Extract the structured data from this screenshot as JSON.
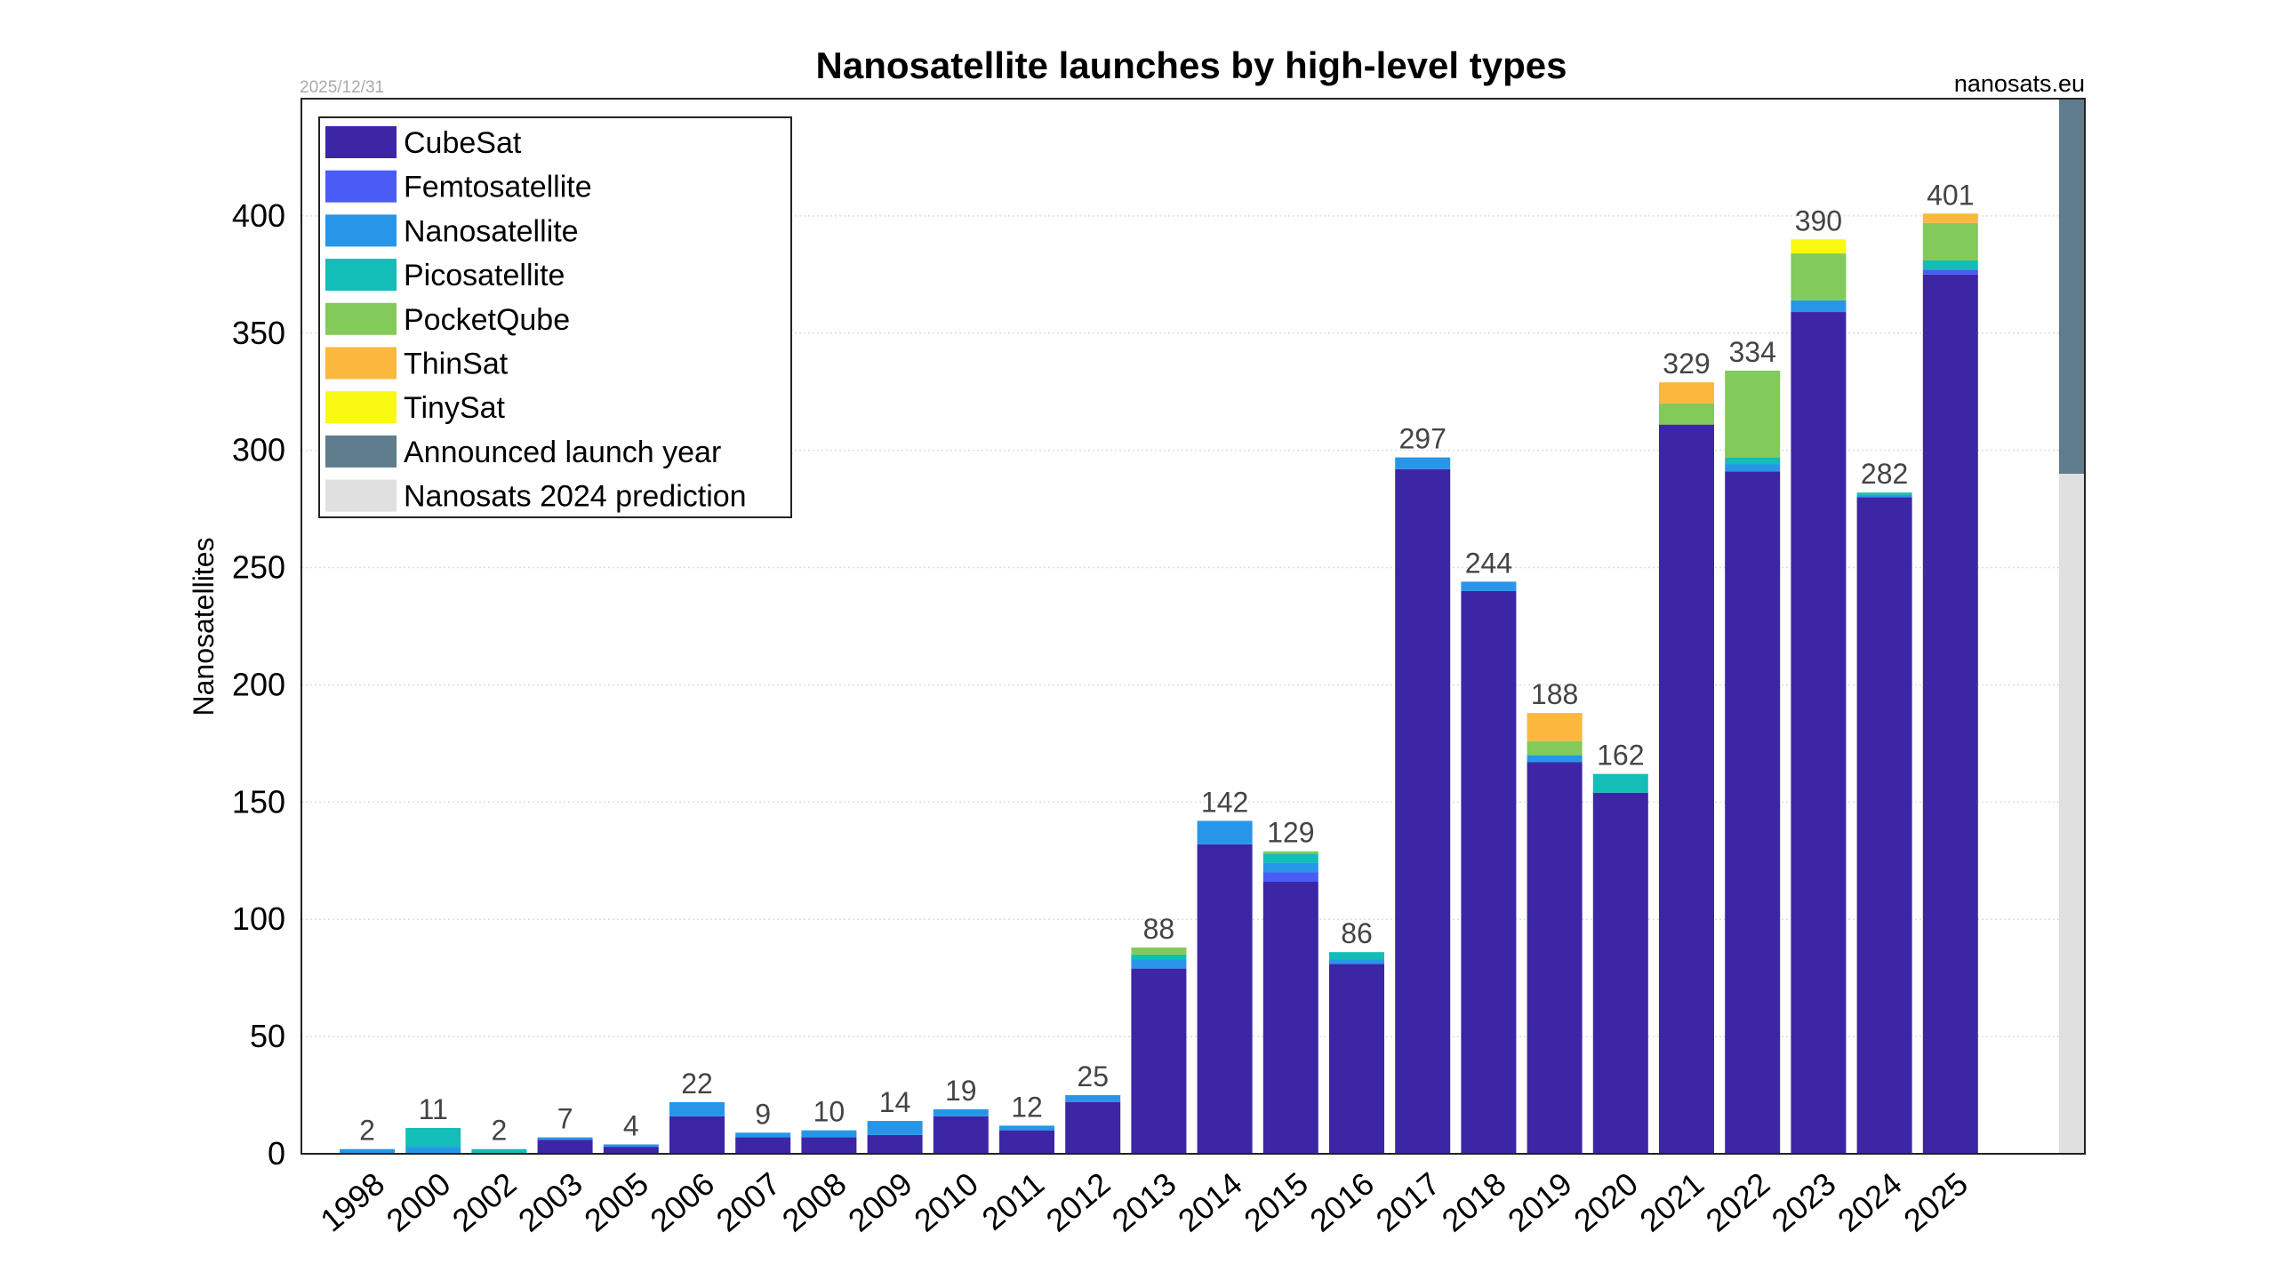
{
  "chart_data": {
    "type": "bar",
    "stacked": true,
    "title": "Nanosatellite launches by high-level types",
    "date": "2025/12/31",
    "source": "nanosats.eu",
    "xlabel": "",
    "ylabel": "Nanosatellites",
    "ylim": [
      0,
      450
    ],
    "yticks": [
      0,
      50,
      100,
      150,
      200,
      250,
      300,
      350,
      400
    ],
    "grid": true,
    "legend_position": "top-left",
    "categories": [
      "1998",
      "2000",
      "2002",
      "2003",
      "2005",
      "2006",
      "2007",
      "2008",
      "2009",
      "2010",
      "2011",
      "2012",
      "2013",
      "2014",
      "2015",
      "2016",
      "2017",
      "2018",
      "2019",
      "2020",
      "2021",
      "2022",
      "2023",
      "2024",
      "2025"
    ],
    "totals": [
      2,
      11,
      2,
      7,
      4,
      22,
      9,
      10,
      14,
      19,
      12,
      25,
      88,
      142,
      129,
      86,
      297,
      244,
      188,
      162,
      329,
      334,
      390,
      282,
      401
    ],
    "series": [
      {
        "name": "CubeSat",
        "color": "#3c26a6",
        "values": [
          0,
          0,
          0,
          6,
          3,
          16,
          7,
          7,
          8,
          16,
          10,
          22,
          79,
          132,
          116,
          81,
          292,
          240,
          167,
          154,
          311,
          291,
          359,
          280,
          375
        ]
      },
      {
        "name": "Femtosatellite",
        "color": "#4a5cf5",
        "values": [
          0,
          0,
          0,
          0,
          0,
          0,
          0,
          0,
          0,
          0,
          0,
          0,
          0,
          0,
          4,
          0,
          0,
          0,
          0,
          0,
          0,
          0,
          0,
          0,
          2
        ]
      },
      {
        "name": "Nanosatellite",
        "color": "#2896e8",
        "values": [
          2,
          3,
          0,
          1,
          1,
          6,
          2,
          3,
          6,
          3,
          2,
          3,
          4,
          10,
          4,
          2,
          5,
          4,
          3,
          0,
          0,
          3,
          5,
          1,
          0
        ]
      },
      {
        "name": "Picosatellite",
        "color": "#13bdb8",
        "values": [
          0,
          8,
          2,
          0,
          0,
          0,
          0,
          0,
          0,
          0,
          0,
          0,
          2,
          0,
          4,
          3,
          0,
          0,
          0,
          8,
          0,
          3,
          0,
          1,
          4
        ]
      },
      {
        "name": "PocketQube",
        "color": "#82ca5a",
        "values": [
          0,
          0,
          0,
          0,
          0,
          0,
          0,
          0,
          0,
          0,
          0,
          0,
          3,
          0,
          1,
          0,
          0,
          0,
          6,
          0,
          9,
          37,
          20,
          0,
          16
        ]
      },
      {
        "name": "ThinSat",
        "color": "#fcb83e",
        "values": [
          0,
          0,
          0,
          0,
          0,
          0,
          0,
          0,
          0,
          0,
          0,
          0,
          0,
          0,
          0,
          0,
          0,
          0,
          12,
          0,
          9,
          0,
          0,
          0,
          4
        ]
      },
      {
        "name": "TinySat",
        "color": "#f8f812",
        "values": [
          0,
          0,
          0,
          0,
          0,
          0,
          0,
          0,
          0,
          0,
          0,
          0,
          0,
          0,
          0,
          0,
          0,
          0,
          0,
          0,
          0,
          0,
          6,
          0,
          0
        ]
      }
    ],
    "extra_series": [
      {
        "name": "Announced launch year",
        "color": "#5f7d8c",
        "range": [
          290,
          450
        ]
      },
      {
        "name": "Nanosats 2024 prediction",
        "color": "#e0e0e0",
        "range": [
          0,
          290
        ]
      }
    ]
  }
}
